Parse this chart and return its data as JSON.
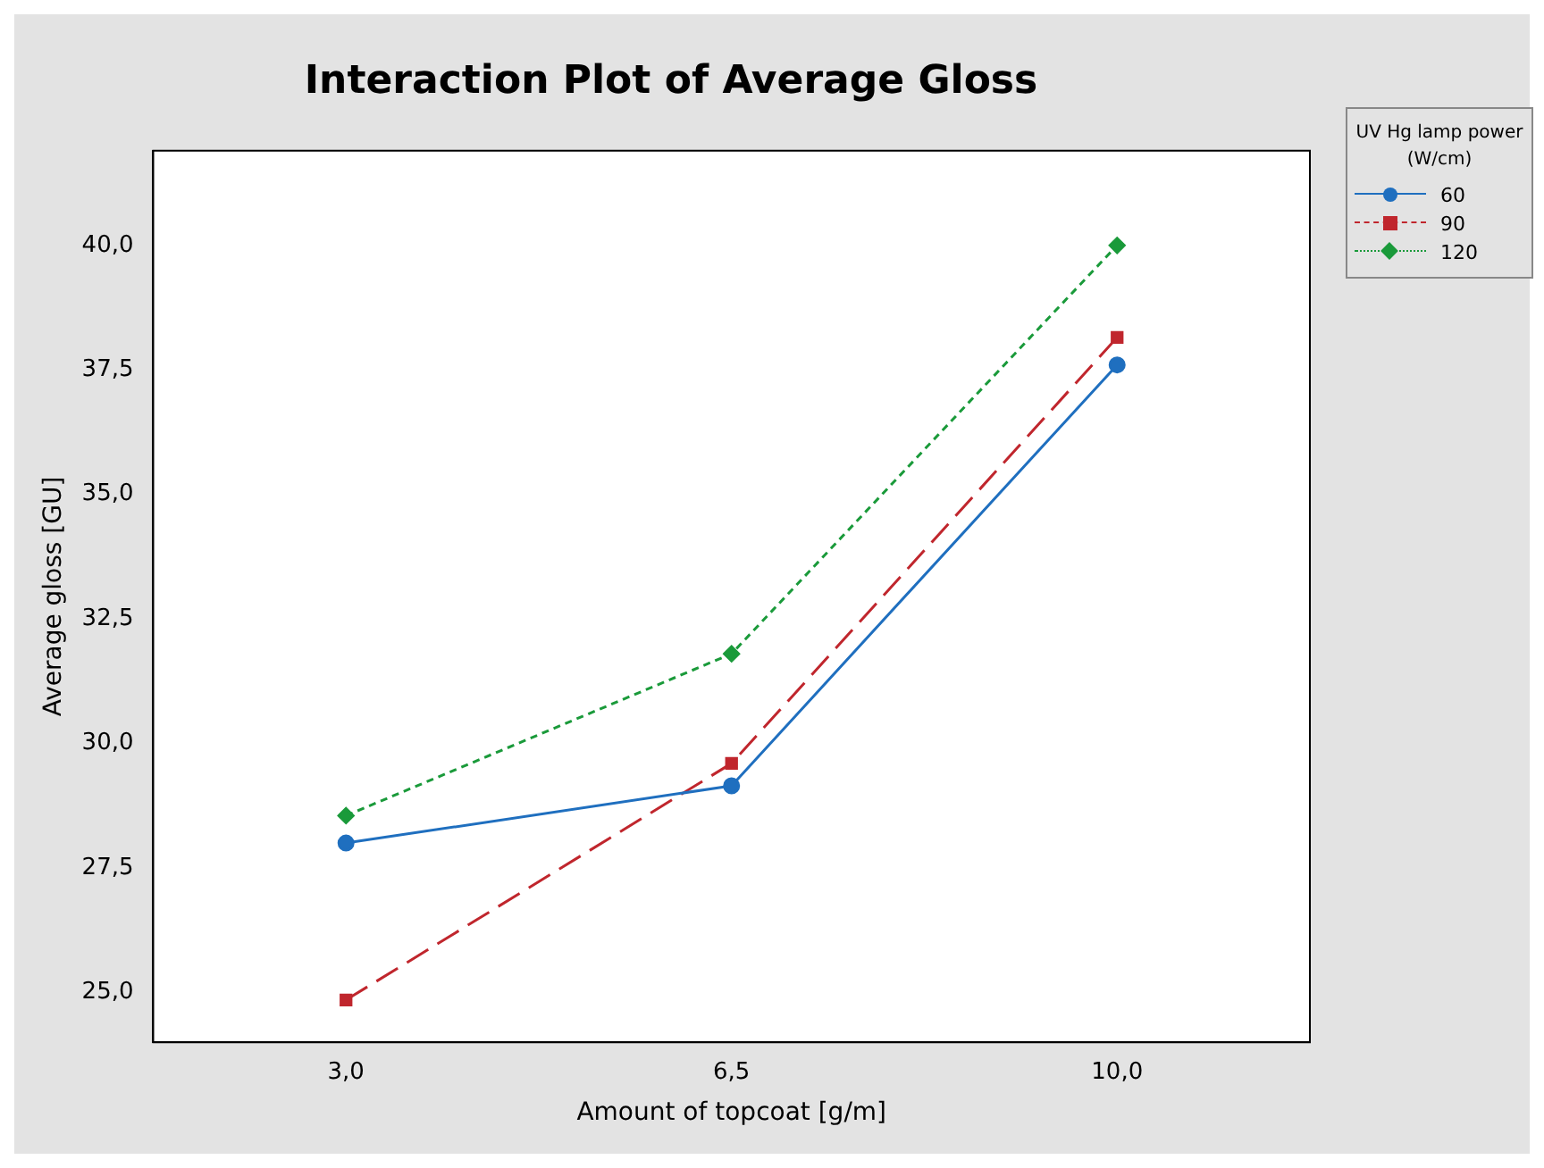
{
  "chart_data": {
    "type": "line",
    "title": "Interaction Plot of Average Gloss",
    "xlabel": "Amount of topcoat [g/m]",
    "ylabel": "Average gloss [GU]",
    "legend_title": "UV Hg lamp power (W/cm)",
    "categories": [
      "3,0",
      "6,5",
      "10,0"
    ],
    "series": [
      {
        "name": "60",
        "color": "#1f6fbf",
        "values": [
          28.0,
          29.15,
          37.6
        ],
        "marker": "circle",
        "line_style": "solid"
      },
      {
        "name": "90",
        "color": "#c0262d",
        "values": [
          24.85,
          29.6,
          38.15
        ],
        "marker": "square",
        "line_style": "dashed"
      },
      {
        "name": "120",
        "color": "#1a9a3a",
        "values": [
          28.55,
          31.8,
          40.0
        ],
        "marker": "diamond",
        "line_style": "dotted"
      }
    ],
    "ylim": [
      24.0,
      41.9
    ],
    "yticks": [
      {
        "value": 25,
        "label": "25,0"
      },
      {
        "value": 27.5,
        "label": "27,5"
      },
      {
        "value": 30,
        "label": "30,0"
      },
      {
        "value": 32.5,
        "label": "32,5"
      },
      {
        "value": 35,
        "label": "35,0"
      },
      {
        "value": 37.5,
        "label": "37,5"
      },
      {
        "value": 40,
        "label": "40,0"
      }
    ],
    "grid": false,
    "legend": "top right"
  }
}
